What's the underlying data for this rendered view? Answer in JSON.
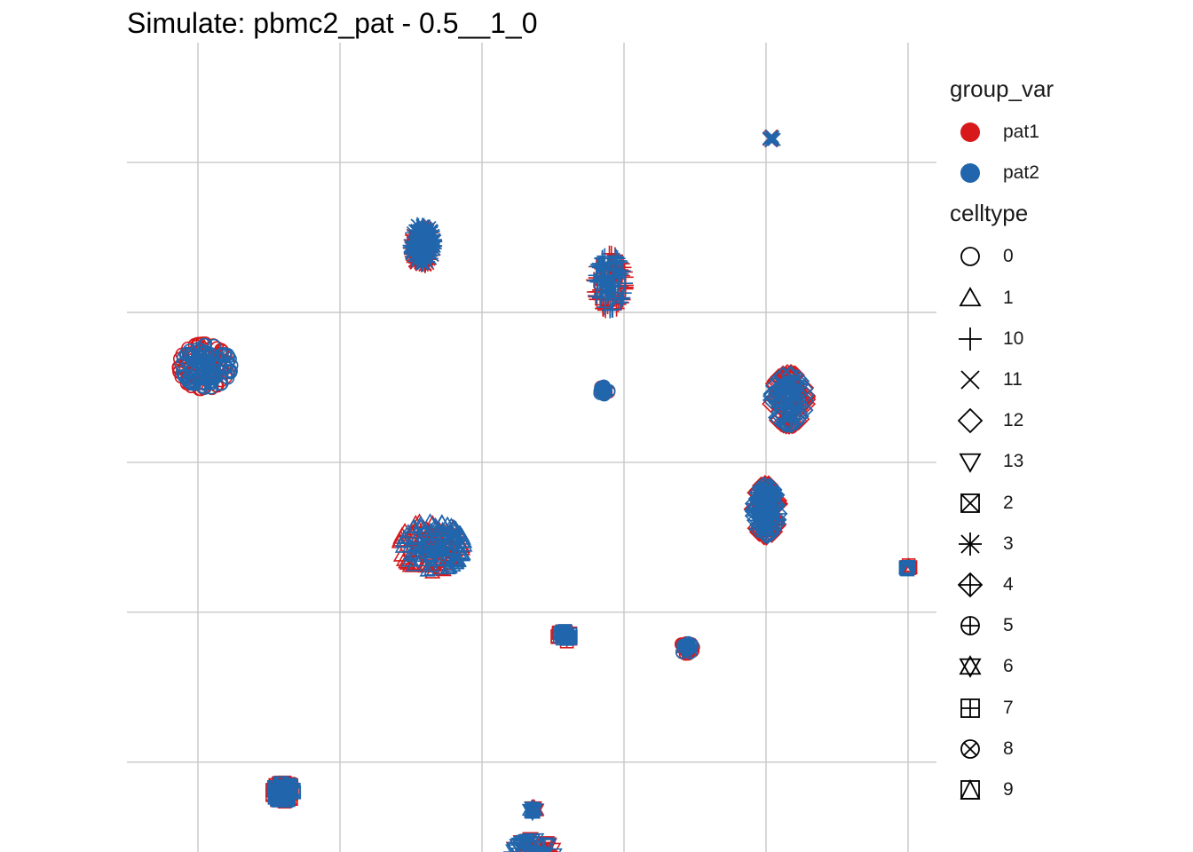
{
  "title": "Simulate: pbmc2_pat - 0.5__1_0",
  "chart_data": {
    "type": "scatter",
    "title": "Simulate: pbmc2_pat - 0.5__1_0",
    "xlabel": "",
    "ylabel": "",
    "xlim": [
      -5.5,
      23
    ],
    "ylim": [
      -6,
      21
    ],
    "x_gridlines": [
      -3,
      2,
      7,
      12,
      17,
      22
    ],
    "y_gridlines": [
      -3,
      2,
      7,
      12,
      17
    ],
    "grid": true,
    "axis_tick_labels_shown": false,
    "legend_position": "right",
    "colors": {
      "pat1": "#d7191c",
      "pat2": "#2166ac",
      "grid": "#c8c8c8"
    },
    "legend_groups": [
      {
        "title": "group_var",
        "entries": [
          {
            "label": "pat1",
            "color": "#d7191c"
          },
          {
            "label": "pat2",
            "color": "#2166ac"
          }
        ]
      },
      {
        "title": "celltype",
        "entries": [
          {
            "label": "0",
            "shape": "circle"
          },
          {
            "label": "1",
            "shape": "triangle-up"
          },
          {
            "label": "10",
            "shape": "plus"
          },
          {
            "label": "11",
            "shape": "cross"
          },
          {
            "label": "12",
            "shape": "diamond"
          },
          {
            "label": "13",
            "shape": "triangle-down"
          },
          {
            "label": "2",
            "shape": "square-cross"
          },
          {
            "label": "3",
            "shape": "asterisk"
          },
          {
            "label": "4",
            "shape": "diamond-plus"
          },
          {
            "label": "5",
            "shape": "circle-plus"
          },
          {
            "label": "6",
            "shape": "star-of-david"
          },
          {
            "label": "7",
            "shape": "square-plus"
          },
          {
            "label": "8",
            "shape": "circle-cross"
          },
          {
            "label": "9",
            "shape": "square-triangle"
          }
        ]
      }
    ],
    "series": [
      {
        "name": "pat1",
        "clusters": [
          {
            "celltype": "0",
            "x": -2.8,
            "y": 10.2,
            "sx": 0.55,
            "sy": 0.48,
            "n": 90
          },
          {
            "celltype": "1",
            "x": 5.2,
            "y": 4.2,
            "sx": 0.7,
            "sy": 0.55,
            "n": 90
          },
          {
            "celltype": "10",
            "x": 11.5,
            "y": 13.0,
            "sx": 0.35,
            "sy": 0.6,
            "n": 70
          },
          {
            "celltype": "11",
            "x": 17.2,
            "y": 17.8,
            "sx": 0.06,
            "sy": 0.05,
            "n": 8
          },
          {
            "celltype": "12",
            "x": 17.8,
            "y": 9.1,
            "sx": 0.4,
            "sy": 0.55,
            "n": 70
          },
          {
            "celltype": "13",
            "x": 8.8,
            "y": -6.2,
            "sx": 0.5,
            "sy": 0.42,
            "n": 70
          },
          {
            "celltype": "2",
            "x": 0.0,
            "y": -4.0,
            "sx": 0.25,
            "sy": 0.2,
            "n": 40
          },
          {
            "celltype": "3",
            "x": 4.9,
            "y": 14.2,
            "sx": 0.25,
            "sy": 0.4,
            "n": 60
          },
          {
            "celltype": "4",
            "x": 17.0,
            "y": 5.4,
            "sx": 0.3,
            "sy": 0.55,
            "n": 60
          },
          {
            "celltype": "5",
            "x": 14.2,
            "y": 0.8,
            "sx": 0.15,
            "sy": 0.12,
            "n": 20
          },
          {
            "celltype": "6",
            "x": 8.8,
            "y": -4.6,
            "sx": 0.08,
            "sy": 0.06,
            "n": 10
          },
          {
            "celltype": "7",
            "x": 9.9,
            "y": 1.2,
            "sx": 0.15,
            "sy": 0.12,
            "n": 20
          },
          {
            "celltype": "8",
            "x": 11.3,
            "y": 9.4,
            "sx": 0.1,
            "sy": 0.12,
            "n": 15
          },
          {
            "celltype": "9",
            "x": 22.0,
            "y": 3.5,
            "sx": 0.05,
            "sy": 0.05,
            "n": 5
          }
        ]
      },
      {
        "name": "pat2",
        "clusters": [
          {
            "celltype": "0",
            "x": -2.7,
            "y": 10.2,
            "sx": 0.55,
            "sy": 0.45,
            "n": 110
          },
          {
            "celltype": "1",
            "x": 5.3,
            "y": 4.2,
            "sx": 0.68,
            "sy": 0.52,
            "n": 110
          },
          {
            "celltype": "10",
            "x": 11.5,
            "y": 13.0,
            "sx": 0.33,
            "sy": 0.58,
            "n": 80
          },
          {
            "celltype": "11",
            "x": 17.2,
            "y": 17.8,
            "sx": 0.06,
            "sy": 0.05,
            "n": 8
          },
          {
            "celltype": "12",
            "x": 17.8,
            "y": 9.1,
            "sx": 0.38,
            "sy": 0.52,
            "n": 80
          },
          {
            "celltype": "13",
            "x": 8.8,
            "y": -6.2,
            "sx": 0.48,
            "sy": 0.4,
            "n": 80
          },
          {
            "celltype": "2",
            "x": 0.0,
            "y": -4.0,
            "sx": 0.24,
            "sy": 0.19,
            "n": 45
          },
          {
            "celltype": "3",
            "x": 4.9,
            "y": 14.3,
            "sx": 0.26,
            "sy": 0.42,
            "n": 80
          },
          {
            "celltype": "4",
            "x": 17.0,
            "y": 5.4,
            "sx": 0.28,
            "sy": 0.52,
            "n": 70
          },
          {
            "celltype": "5",
            "x": 14.2,
            "y": 0.8,
            "sx": 0.14,
            "sy": 0.11,
            "n": 20
          },
          {
            "celltype": "6",
            "x": 8.8,
            "y": -4.6,
            "sx": 0.08,
            "sy": 0.06,
            "n": 10
          },
          {
            "celltype": "7",
            "x": 9.9,
            "y": 1.2,
            "sx": 0.14,
            "sy": 0.11,
            "n": 20
          },
          {
            "celltype": "8",
            "x": 11.3,
            "y": 9.4,
            "sx": 0.1,
            "sy": 0.12,
            "n": 15
          },
          {
            "celltype": "9",
            "x": 22.0,
            "y": 3.5,
            "sx": 0.05,
            "sy": 0.05,
            "n": 5
          }
        ]
      }
    ]
  }
}
